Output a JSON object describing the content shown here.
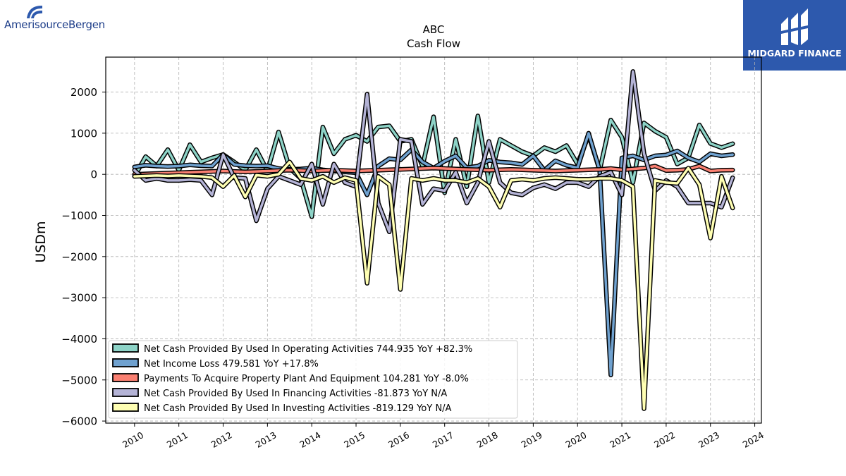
{
  "branding": {
    "left_logo_text": "AmerisourceBergen",
    "right_logo_text": "MIDGARD FINANCE"
  },
  "chart_data": {
    "type": "line",
    "title": "ABC",
    "subtitle": "Cash Flow",
    "xlabel": "",
    "ylabel": "USDm",
    "xlim": [
      2009.35,
      2024.15
    ],
    "ylim": [
      -6050,
      2850
    ],
    "x_ticks": [
      2010,
      2011,
      2012,
      2013,
      2014,
      2015,
      2016,
      2017,
      2018,
      2019,
      2020,
      2021,
      2022,
      2023,
      2024
    ],
    "y_ticks": [
      2000,
      1000,
      0,
      -1000,
      -2000,
      -3000,
      -4000,
      -5000,
      -6000
    ],
    "y_tick_labels": [
      "2000",
      "1000",
      "0",
      "−1000",
      "−2000",
      "−3000",
      "−4000",
      "−5000",
      "−6000"
    ],
    "grid": true,
    "legend_position": "lower-left",
    "x": [
      2010.0,
      2010.25,
      2010.5,
      2010.75,
      2011.0,
      2011.25,
      2011.5,
      2011.75,
      2012.0,
      2012.25,
      2012.5,
      2012.75,
      2013.0,
      2013.25,
      2013.5,
      2013.75,
      2014.0,
      2014.25,
      2014.5,
      2014.75,
      2015.0,
      2015.25,
      2015.5,
      2015.75,
      2016.0,
      2016.25,
      2016.5,
      2016.75,
      2017.0,
      2017.25,
      2017.5,
      2017.75,
      2018.0,
      2018.25,
      2018.5,
      2018.75,
      2019.0,
      2019.25,
      2019.5,
      2019.75,
      2020.0,
      2020.25,
      2020.5,
      2020.75,
      2021.0,
      2021.25,
      2021.5,
      2021.75,
      2022.0,
      2022.25,
      2022.5,
      2022.75,
      2023.0,
      2023.25,
      2023.5
    ],
    "series": [
      {
        "name": "Net Cash Provided By Used In Operating Activities",
        "legend_label": "Net Cash Provided By Used In Operating Activities  744.935 YoY +82.3%",
        "color": "#8dd3c7",
        "values": [
          -50,
          430,
          200,
          600,
          100,
          720,
          300,
          400,
          480,
          300,
          100,
          600,
          80,
          1030,
          150,
          -100,
          -1030,
          1150,
          500,
          850,
          950,
          800,
          1150,
          1180,
          800,
          850,
          200,
          1400,
          -450,
          850,
          -300,
          1420,
          -200,
          850,
          700,
          550,
          450,
          650,
          550,
          700,
          250,
          950,
          100,
          1320,
          900,
          -200,
          1250,
          1050,
          900,
          250,
          400,
          1200,
          750,
          650,
          744.935
        ]
      },
      {
        "name": "Net Income Loss",
        "legend_label": "Net Income Loss  479.581 YoY +17.8%",
        "color": "#6fa1cf",
        "values": [
          180,
          220,
          200,
          190,
          200,
          230,
          210,
          200,
          480,
          240,
          210,
          200,
          210,
          140,
          120,
          130,
          150,
          110,
          80,
          60,
          40,
          -500,
          200,
          380,
          350,
          600,
          300,
          150,
          320,
          450,
          160,
          200,
          340,
          300,
          280,
          240,
          450,
          100,
          330,
          220,
          160,
          1000,
          100,
          -4880,
          400,
          450,
          350,
          450,
          470,
          570,
          400,
          300,
          500,
          450,
          479.581
        ]
      },
      {
        "name": "Payments To Acquire Property Plant And Equipment",
        "legend_label": "Payments To Acquire Property Plant And Equipment  104.281 YoY -8.0%",
        "color": "#fa8072",
        "values": [
          0,
          10,
          20,
          30,
          40,
          50,
          60,
          70,
          80,
          70,
          60,
          70,
          80,
          90,
          100,
          90,
          80,
          90,
          100,
          90,
          80,
          90,
          100,
          110,
          120,
          130,
          140,
          150,
          140,
          130,
          120,
          110,
          100,
          110,
          120,
          110,
          100,
          90,
          80,
          90,
          100,
          110,
          120,
          140,
          110,
          130,
          150,
          200,
          90,
          100,
          120,
          200,
          80,
          100,
          104.281
        ]
      },
      {
        "name": "Net Cash Provided By Used In Financing Activities",
        "legend_label": "Net Cash Provided By Used In Financing Activities  -81.873 YoY N/A",
        "color": "#b4b3d6",
        "values": [
          100,
          -150,
          -100,
          -150,
          -150,
          -130,
          -150,
          -500,
          480,
          -80,
          -100,
          -1130,
          -350,
          -50,
          -150,
          -250,
          250,
          -730,
          250,
          -200,
          -300,
          1950,
          -700,
          -1400,
          850,
          800,
          -730,
          -350,
          -400,
          50,
          -700,
          -200,
          800,
          -200,
          -450,
          -500,
          -330,
          -250,
          -350,
          -200,
          -200,
          -300,
          -50,
          50,
          -500,
          2500,
          500,
          -400,
          -150,
          -300,
          -700,
          -700,
          -700,
          -800,
          -81.873
        ]
      },
      {
        "name": "Net Cash Provided By Used In Investing Activities",
        "legend_label": "Net Cash Provided By Used In Investing Activities  -819.129 YoY N/A",
        "color": "#ffffb3",
        "values": [
          -50,
          -40,
          -30,
          -40,
          -30,
          -40,
          -50,
          -80,
          -300,
          -30,
          -550,
          -20,
          -50,
          0,
          300,
          -100,
          -150,
          -50,
          -200,
          -80,
          -150,
          -2650,
          -50,
          -250,
          -2800,
          -100,
          -150,
          -100,
          -150,
          -150,
          -200,
          -100,
          -300,
          -800,
          -150,
          -120,
          -150,
          -100,
          -80,
          -100,
          -120,
          -120,
          -100,
          -100,
          -150,
          -300,
          -5700,
          -150,
          -200,
          -220,
          150,
          -250,
          -1550,
          -50,
          -819.129
        ]
      }
    ]
  }
}
